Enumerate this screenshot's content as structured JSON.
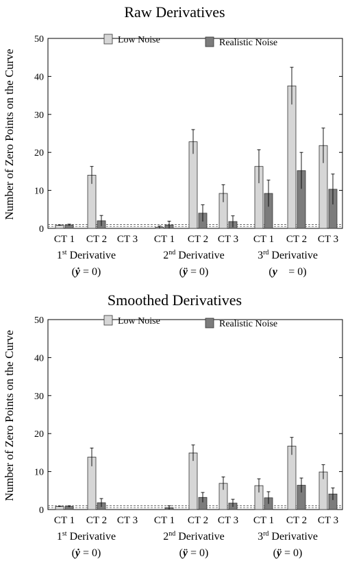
{
  "chart_data": [
    {
      "type": "bar",
      "title": "Raw Derivatives",
      "ylabel": "Number of Zero Points on the Curve",
      "xlabel": "",
      "ylim": [
        0,
        50
      ],
      "yticks": [
        "0",
        "10",
        "20",
        "30",
        "40",
        "50"
      ],
      "categories": [
        "CT 1",
        "CT 2",
        "CT 3",
        "CT 1",
        "CT 2",
        "CT 3",
        "CT 1",
        "CT 2",
        "CT 3"
      ],
      "groups": [
        {
          "label_main": "Derivative",
          "ordinal_num": "1",
          "ordinal_sup": "st",
          "condition_var": "ẏ",
          "condition_eq": " = 0)"
        },
        {
          "label_main": "Derivative",
          "ordinal_num": "2",
          "ordinal_sup": "nd",
          "condition_var": "ÿ",
          "condition_eq": " = 0)"
        },
        {
          "label_main": "Derivative",
          "ordinal_num": "3",
          "ordinal_sup": "rd",
          "condition_var": "y⃛",
          "condition_eq": " = 0)"
        }
      ],
      "legend": {
        "placement": "top",
        "entries": [
          "Low Noise",
          "Realistic Noise"
        ]
      },
      "series": [
        {
          "name": "Low Noise",
          "color": "#d6d6d6",
          "values": [
            0.8,
            14.0,
            0.0,
            0.3,
            22.8,
            9.2,
            16.3,
            37.5,
            21.8
          ],
          "errors": [
            0.1,
            2.3,
            0.0,
            0.3,
            3.2,
            2.3,
            4.4,
            4.9,
            4.6
          ]
        },
        {
          "name": "Realistic Noise",
          "color": "#7c7c7c",
          "values": [
            0.9,
            2.0,
            0.0,
            0.9,
            4.0,
            1.8,
            9.2,
            15.2,
            10.3
          ],
          "errors": [
            0.2,
            1.4,
            0.0,
            1.0,
            2.2,
            1.5,
            3.5,
            4.8,
            4.0
          ]
        }
      ],
      "reference_lines": [
        0.5,
        1.0
      ]
    },
    {
      "type": "bar",
      "title": "Smoothed Derivatives",
      "ylabel": "Number of Zero Points on the Curve",
      "xlabel": "",
      "ylim": [
        0,
        50
      ],
      "yticks": [
        "0",
        "10",
        "20",
        "30",
        "40",
        "50"
      ],
      "categories": [
        "CT 1",
        "CT 2",
        "CT 3",
        "CT 1",
        "CT 2",
        "CT 3",
        "CT 1",
        "CT 2",
        "CT 3"
      ],
      "groups": [
        {
          "label_main": "Derivative",
          "ordinal_num": "1",
          "ordinal_sup": "st",
          "condition_var": "ẏ",
          "condition_eq": " = 0)"
        },
        {
          "label_main": "Derivative",
          "ordinal_num": "2",
          "ordinal_sup": "nd",
          "condition_var": "ÿ",
          "condition_eq": " = 0)"
        },
        {
          "label_main": "Derivative",
          "ordinal_num": "3",
          "ordinal_sup": "rd",
          "condition_var": "ÿ",
          "condition_eq": " = 0)"
        }
      ],
      "legend": {
        "placement": "top",
        "entries": [
          "Low Noise",
          "Realistic Noise"
        ]
      },
      "series": [
        {
          "name": "Low Noise",
          "color": "#d6d6d6",
          "values": [
            0.8,
            13.8,
            0.0,
            0.0,
            14.9,
            6.9,
            6.3,
            16.7,
            9.9
          ],
          "errors": [
            0.1,
            2.4,
            0.0,
            0.0,
            2.1,
            1.7,
            1.8,
            2.3,
            1.9
          ]
        },
        {
          "name": "Realistic Noise",
          "color": "#7c7c7c",
          "values": [
            0.8,
            1.8,
            0.0,
            0.5,
            3.2,
            1.7,
            3.1,
            6.4,
            4.1
          ],
          "errors": [
            0.2,
            1.1,
            0.0,
            0.5,
            1.3,
            1.0,
            1.6,
            1.9,
            1.6
          ]
        }
      ],
      "reference_lines": [
        0.5,
        1.0
      ]
    }
  ]
}
